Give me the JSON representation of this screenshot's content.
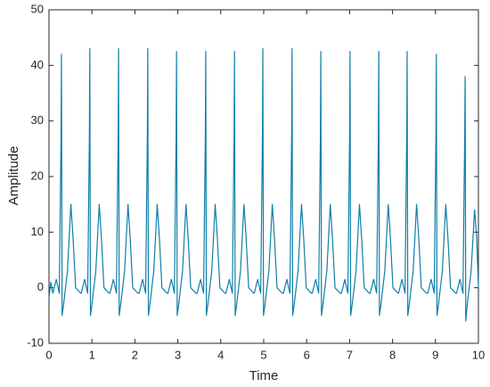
{
  "chart_data": {
    "type": "line",
    "xlabel": "Time",
    "ylabel": "Amplitude",
    "xlim": [
      0,
      10
    ],
    "xticks": [
      0,
      1,
      2,
      3,
      4,
      5,
      6,
      7,
      8,
      9,
      10
    ],
    "ylim": [
      -10,
      50
    ],
    "yticks": [
      -10,
      0,
      10,
      20,
      30,
      40,
      50
    ],
    "grid": false,
    "x": [
      0,
      0.04,
      0.09,
      0.17,
      0.24,
      0.28,
      0.29,
      0.305,
      0.34,
      0.43,
      0.51,
      0.56,
      0.62,
      0.74,
      0.75,
      0.83,
      0.9,
      0.94,
      0.95,
      0.965,
      1.0,
      1.09,
      1.17,
      1.22,
      1.28,
      1.4,
      1.42,
      1.5,
      1.57,
      1.61,
      1.62,
      1.635,
      1.67,
      1.76,
      1.84,
      1.89,
      1.95,
      2.07,
      2.1,
      2.18,
      2.25,
      2.29,
      2.3,
      2.315,
      2.35,
      2.44,
      2.52,
      2.57,
      2.63,
      2.75,
      2.77,
      2.85,
      2.92,
      2.96,
      2.97,
      2.985,
      3.02,
      3.11,
      3.19,
      3.24,
      3.3,
      3.42,
      3.45,
      3.53,
      3.6,
      3.64,
      3.65,
      3.665,
      3.7,
      3.79,
      3.87,
      3.92,
      3.98,
      4.1,
      4.12,
      4.2,
      4.27,
      4.31,
      4.32,
      4.335,
      4.37,
      4.46,
      4.54,
      4.59,
      4.65,
      4.77,
      4.78,
      4.86,
      4.93,
      4.97,
      4.98,
      4.995,
      5.03,
      5.12,
      5.2,
      5.25,
      5.31,
      5.43,
      5.46,
      5.54,
      5.61,
      5.65,
      5.66,
      5.675,
      5.71,
      5.8,
      5.88,
      5.93,
      5.99,
      6.11,
      6.13,
      6.21,
      6.28,
      6.32,
      6.33,
      6.345,
      6.38,
      6.47,
      6.55,
      6.6,
      6.66,
      6.78,
      6.81,
      6.89,
      6.96,
      7.0,
      7.01,
      7.025,
      7.06,
      7.15,
      7.23,
      7.28,
      7.34,
      7.46,
      7.48,
      7.56,
      7.63,
      7.67,
      7.68,
      7.695,
      7.73,
      7.82,
      7.9,
      7.95,
      8.01,
      8.13,
      8.14,
      8.22,
      8.29,
      8.33,
      8.34,
      8.355,
      8.39,
      8.48,
      8.56,
      8.61,
      8.67,
      8.79,
      8.82,
      8.9,
      8.97,
      9.01,
      9.02,
      9.035,
      9.07,
      9.16,
      9.24,
      9.29,
      9.35,
      9.47,
      9.49,
      9.57,
      9.64,
      9.68,
      9.69,
      9.705,
      9.74,
      9.83,
      9.91,
      9.96,
      10
    ],
    "series": [
      {
        "name": "Amplitude",
        "color": "#0f7fa8",
        "values": [
          -2,
          1,
          -1,
          1.5,
          -1,
          27,
          42,
          -5,
          -3,
          3,
          15,
          9,
          0,
          -1,
          -1,
          1.5,
          -1,
          27,
          43,
          -5,
          -3,
          3,
          15,
          9,
          0,
          -1,
          -1,
          1.5,
          -1,
          27,
          43,
          -5,
          -3,
          3,
          15,
          9,
          0,
          -1,
          -1,
          1.5,
          -1,
          27,
          43,
          -5,
          -3,
          3,
          15,
          9,
          0,
          -1,
          -1,
          1.5,
          -1,
          27,
          42.5,
          -5,
          -3,
          3,
          15,
          9,
          0,
          -1,
          -1,
          1.5,
          -1,
          27,
          42.5,
          -5,
          -3,
          3,
          15,
          9,
          0,
          -1,
          -1,
          1.5,
          -1,
          27,
          42.5,
          -5,
          -3,
          3,
          15,
          9,
          0,
          -1,
          -1,
          1.5,
          -1,
          27,
          43,
          -5,
          -3,
          3,
          15,
          9,
          0,
          -1,
          -1,
          1.5,
          -1,
          27,
          43,
          -5,
          -3,
          3,
          15,
          9,
          0,
          -1,
          -1,
          1.5,
          -1,
          27,
          42.5,
          -5,
          -3,
          3,
          15,
          9,
          0,
          -1,
          -1,
          1.5,
          -1,
          27,
          42.5,
          -5,
          -3,
          3,
          15,
          9,
          0,
          -1,
          -1,
          1.5,
          -1,
          27,
          42.5,
          -5,
          -3,
          3,
          15,
          9,
          0,
          -1,
          -1,
          1.5,
          -1,
          27,
          42.5,
          -5,
          -3,
          3,
          15,
          9,
          0,
          -1,
          -1,
          1.5,
          -1,
          27,
          42,
          -5,
          -3,
          3,
          15,
          9,
          0,
          -1,
          -1,
          1.5,
          -1,
          27,
          38,
          -6,
          -3,
          3,
          14,
          9,
          0
        ]
      }
    ]
  }
}
